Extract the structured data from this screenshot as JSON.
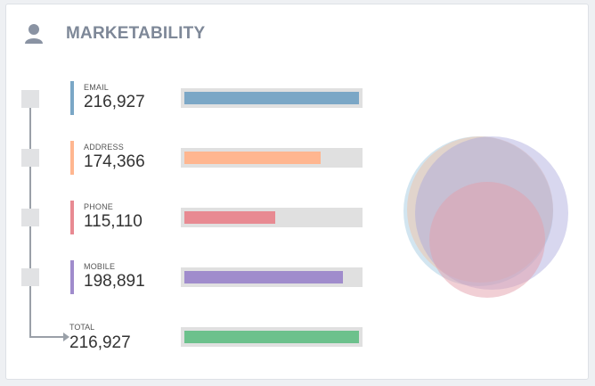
{
  "header": {
    "title": "MARKETABILITY",
    "icon": "user-icon"
  },
  "rows": [
    {
      "label": "EMAIL",
      "value": "216,927",
      "color": "#7ba7c6",
      "fill": 1.0
    },
    {
      "label": "ADDRESS",
      "value": "174,366",
      "color": "#ffb690",
      "fill": 0.78
    },
    {
      "label": "PHONE",
      "value": "115,110",
      "color": "#e88a92",
      "fill": 0.52
    },
    {
      "label": "MOBILE",
      "value": "198,891",
      "color": "#a08ccc",
      "fill": 0.91
    }
  ],
  "total": {
    "label": "TOTAL",
    "value": "216,927",
    "color": "#6cc18c",
    "fill": 1.0
  },
  "venn": {
    "circles": [
      {
        "name": "email",
        "color": "#9cc6de"
      },
      {
        "name": "address",
        "color": "#f3bfa0"
      },
      {
        "name": "mobile",
        "color": "#a9a7dc"
      },
      {
        "name": "phone",
        "color": "#e3a0ac"
      }
    ]
  }
}
